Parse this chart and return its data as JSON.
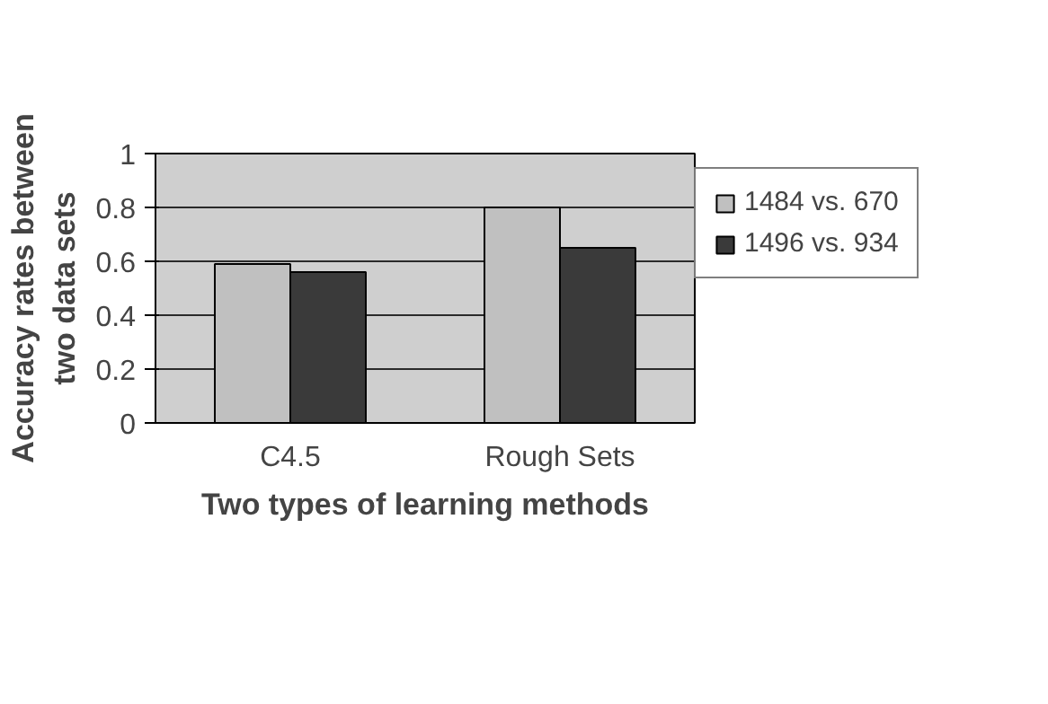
{
  "chart_data": {
    "type": "bar",
    "xlabel": "Two types of learning methods",
    "ylabel": "Accuracy rates between\ntwo data sets",
    "categories": [
      "C4.5",
      "Rough Sets"
    ],
    "series": [
      {
        "name": "1484 vs. 670",
        "color": "#c0c0c0",
        "values": [
          0.59,
          0.8
        ]
      },
      {
        "name": "1496 vs. 934",
        "color": "#3a3a3a",
        "values": [
          0.56,
          0.65
        ]
      }
    ],
    "ylim": [
      0,
      1
    ],
    "yticks": [
      0,
      0.2,
      0.4,
      0.6,
      0.8,
      1
    ],
    "grid": "y",
    "legend": "top right"
  }
}
